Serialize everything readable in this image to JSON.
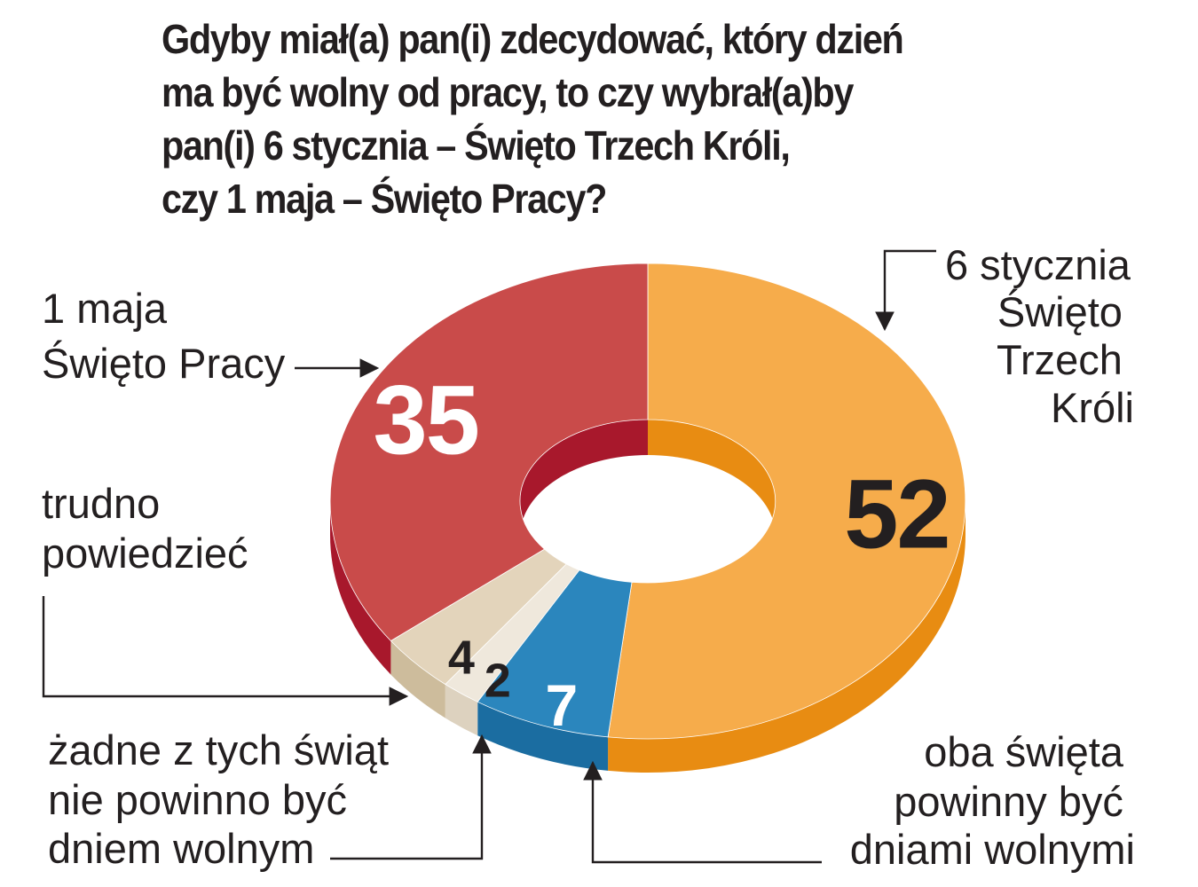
{
  "title_lines": [
    "Gdyby miał(a) pan(i) zdecydować, który dzień",
    "ma być wolny od pracy, to czy wybrał(a)by",
    "pan(i) 6 stycznia – Święto Trzech Króli,",
    "czy 1 maja – Święto Pracy?"
  ],
  "chart_data": {
    "type": "pie",
    "variant": "donut-3d",
    "unit": "%",
    "slices": [
      {
        "id": "six-january",
        "value": 52,
        "label_lines": [
          "6 stycznia",
          "Święto",
          "Trzech",
          "Króli"
        ],
        "color": "#f6ac4b",
        "side_color": "#e88c12",
        "value_color": "#231f20"
      },
      {
        "id": "both",
        "value": 7,
        "label_lines": [
          "oba święta",
          "powinny być",
          "dniami wolnymi"
        ],
        "color": "#2b86bd",
        "side_color": "#1b6da1",
        "value_color": "#ffffff"
      },
      {
        "id": "none",
        "value": 2,
        "label_lines": [
          "żadne z tych świąt",
          "nie powinno być",
          "dniem wolnym"
        ],
        "color": "#efe8dc",
        "side_color": "#ddd2bf",
        "value_color": "#231f20"
      },
      {
        "id": "hard-to-say",
        "value": 4,
        "label_lines": [
          "trudno",
          "powiedzieć"
        ],
        "color": "#e3d4bb",
        "side_color": "#cdbc9c",
        "value_color": "#231f20"
      },
      {
        "id": "first-may",
        "value": 35,
        "label_lines": [
          "1 maja",
          "Święto Pracy"
        ],
        "color": "#c94b4a",
        "side_color": "#a8182c",
        "value_color": "#ffffff"
      }
    ]
  }
}
